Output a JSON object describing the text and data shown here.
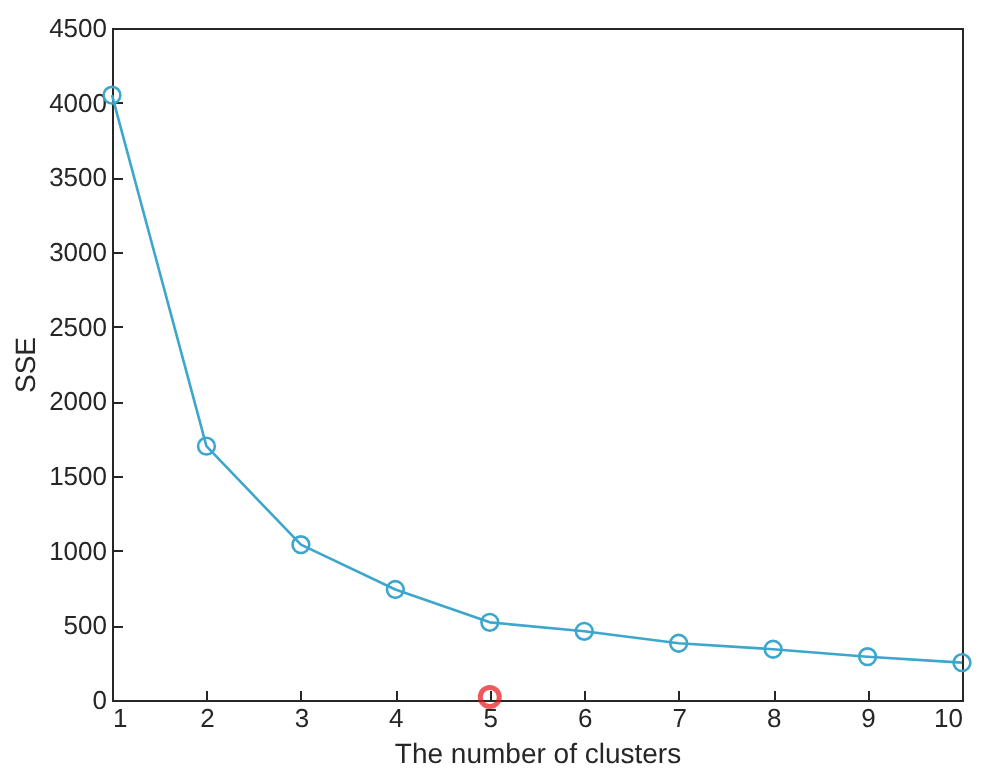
{
  "chart_data": {
    "type": "line",
    "xlabel": "The number of clusters",
    "ylabel": "SSE",
    "x": [
      1,
      2,
      3,
      4,
      5,
      6,
      7,
      8,
      9,
      10
    ],
    "series": [
      {
        "color": "#3ca6cc",
        "marker": "circle",
        "values": [
          4050,
          1700,
          1040,
          740,
          520,
          460,
          380,
          340,
          290,
          250
        ]
      },
      {
        "type": "scatter",
        "color": "#e8141a",
        "marker": "circle",
        "x": [
          5
        ],
        "values": [
          20
        ]
      }
    ],
    "xlim": [
      1,
      10
    ],
    "xticks": [
      1,
      2,
      3,
      4,
      5,
      6,
      7,
      8,
      9,
      10
    ],
    "ylim": [
      0,
      4500
    ],
    "yticks": [
      0,
      500,
      1000,
      1500,
      2000,
      2500,
      3000,
      3500,
      4000,
      4500
    ],
    "grid": false
  }
}
